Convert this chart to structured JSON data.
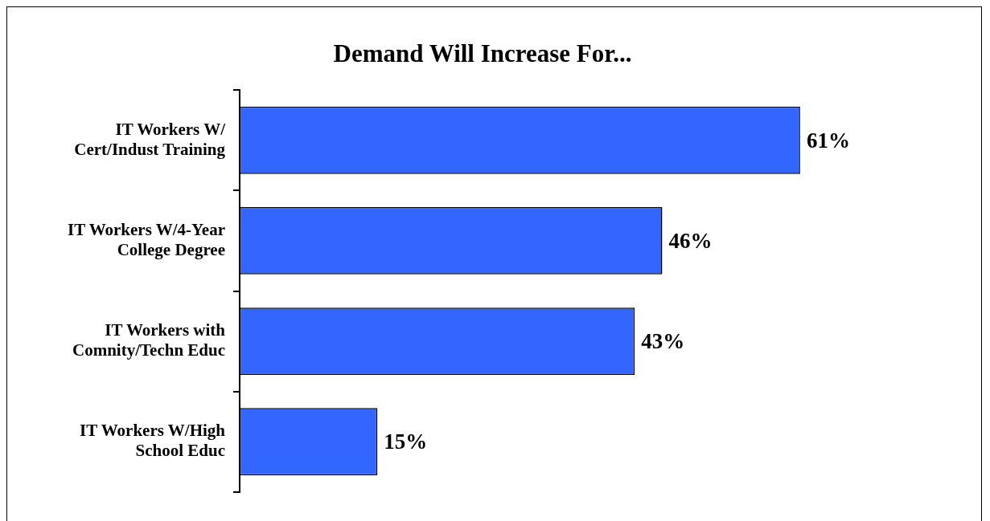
{
  "chart_data": {
    "type": "bar",
    "orientation": "horizontal",
    "title": "Demand Will Increase For...",
    "categories": [
      "IT Workers W/\nCert/Indust Training",
      "IT Workers W/4-Year\nCollege Degree",
      "IT Workers with\nComnity/Techn Educ",
      "IT Workers W/High\nSchool Educ"
    ],
    "values": [
      61,
      46,
      43,
      15
    ],
    "value_labels": [
      "61%",
      "46%",
      "43%",
      "15%"
    ],
    "color": "#3366ff",
    "legend": false
  }
}
